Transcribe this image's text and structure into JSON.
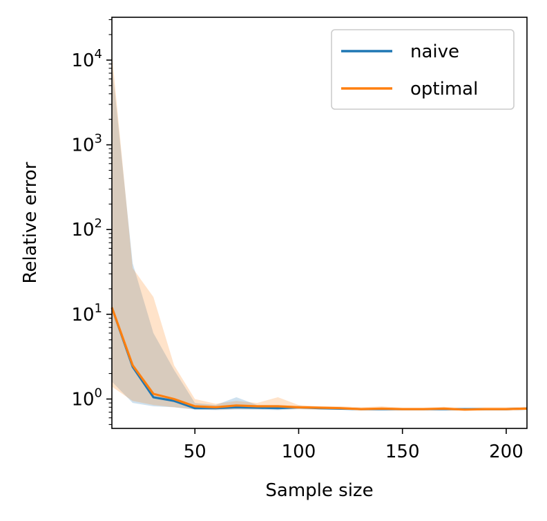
{
  "chart_data": {
    "type": "line",
    "title": "",
    "xlabel": "Sample size",
    "ylabel": "Relative error",
    "xlim": [
      10,
      210
    ],
    "ylim": [
      0.45,
      32000
    ],
    "yscale": "log",
    "grid": false,
    "legend_position": "top-right",
    "x_ticks": [
      {
        "value": 50,
        "label": "50"
      },
      {
        "value": 100,
        "label": "100"
      },
      {
        "value": 150,
        "label": "150"
      },
      {
        "value": 200,
        "label": "200"
      }
    ],
    "y_ticks": [
      {
        "value": 1,
        "base": "10",
        "exp": "0"
      },
      {
        "value": 10,
        "base": "10",
        "exp": "1"
      },
      {
        "value": 100,
        "base": "10",
        "exp": "2"
      },
      {
        "value": 1000,
        "base": "10",
        "exp": "3"
      },
      {
        "value": 10000,
        "base": "10",
        "exp": "4"
      }
    ],
    "x": [
      10,
      20,
      30,
      40,
      50,
      60,
      70,
      80,
      90,
      100,
      110,
      120,
      130,
      140,
      150,
      160,
      170,
      180,
      190,
      200,
      210
    ],
    "series": [
      {
        "name": "naive",
        "color": "#1f77b4",
        "values": [
          12,
          2.4,
          1.05,
          0.95,
          0.78,
          0.78,
          0.8,
          0.79,
          0.78,
          0.8,
          0.78,
          0.77,
          0.76,
          0.76,
          0.76,
          0.76,
          0.76,
          0.76,
          0.76,
          0.76,
          0.77
        ],
        "band_upper": [
          9000,
          40,
          6,
          2.2,
          0.9,
          0.85,
          1.05,
          0.85,
          0.85,
          0.82,
          0.8,
          0.79,
          0.78,
          0.78,
          0.77,
          0.77,
          0.77,
          0.77,
          0.77,
          0.77,
          0.78
        ],
        "band_lower": [
          1.6,
          0.9,
          0.82,
          0.8,
          0.75,
          0.74,
          0.75,
          0.75,
          0.74,
          0.76,
          0.75,
          0.75,
          0.74,
          0.74,
          0.74,
          0.74,
          0.74,
          0.74,
          0.74,
          0.74,
          0.75
        ]
      },
      {
        "name": "optimal",
        "color": "#ff7f0e",
        "values": [
          12,
          2.5,
          1.15,
          1.0,
          0.82,
          0.8,
          0.84,
          0.82,
          0.82,
          0.8,
          0.79,
          0.78,
          0.76,
          0.77,
          0.76,
          0.76,
          0.77,
          0.75,
          0.76,
          0.76,
          0.77
        ],
        "band_upper": [
          12000,
          35,
          16,
          2.5,
          1.0,
          0.88,
          0.95,
          0.9,
          1.05,
          0.85,
          0.82,
          0.82,
          0.8,
          0.82,
          0.79,
          0.79,
          0.81,
          0.78,
          0.8,
          0.8,
          0.81
        ],
        "band_lower": [
          1.4,
          0.95,
          0.85,
          0.8,
          0.76,
          0.75,
          0.76,
          0.76,
          0.76,
          0.76,
          0.75,
          0.75,
          0.74,
          0.74,
          0.74,
          0.74,
          0.74,
          0.73,
          0.74,
          0.74,
          0.75
        ]
      }
    ]
  }
}
